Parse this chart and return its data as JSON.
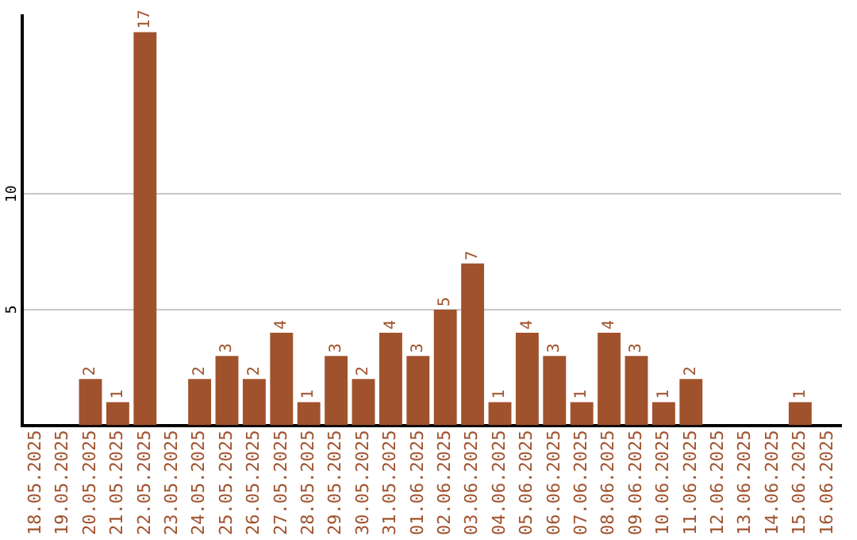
{
  "chart_data": {
    "type": "bar",
    "categories": [
      "18.05.2025",
      "19.05.2025",
      "20.05.2025",
      "21.05.2025",
      "22.05.2025",
      "23.05.2025",
      "24.05.2025",
      "25.05.2025",
      "26.05.2025",
      "27.05.2025",
      "28.05.2025",
      "29.05.2025",
      "30.05.2025",
      "31.05.2025",
      "01.06.2025",
      "02.06.2025",
      "03.06.2025",
      "04.06.2025",
      "05.06.2025",
      "06.06.2025",
      "07.06.2025",
      "08.06.2025",
      "09.06.2025",
      "10.06.2025",
      "11.06.2025",
      "12.06.2025",
      "13.06.2025",
      "14.06.2025",
      "15.06.2025",
      "16.06.2025"
    ],
    "values": [
      0,
      0,
      2,
      1,
      17,
      0,
      2,
      3,
      2,
      4,
      1,
      3,
      2,
      4,
      3,
      5,
      7,
      1,
      4,
      3,
      1,
      4,
      3,
      1,
      2,
      0,
      0,
      0,
      1,
      0
    ],
    "value_labels": [
      null,
      null,
      "2",
      "1",
      "17",
      null,
      "2",
      "3",
      "2",
      "4",
      "1",
      "3",
      "2",
      "4",
      "3",
      "5",
      "7",
      "1",
      "4",
      "3",
      "1",
      "4",
      "3",
      "1",
      "2",
      null,
      null,
      null,
      "1",
      null
    ],
    "color": "#a0522d",
    "ylim": [
      0,
      17.7
    ],
    "yticks": [
      5,
      10
    ],
    "grid": "y"
  }
}
